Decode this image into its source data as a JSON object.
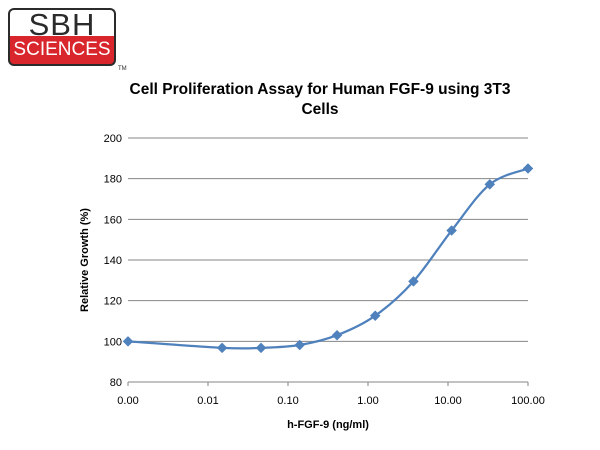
{
  "logo": {
    "top": "SBH",
    "bottom": "SCIENCES",
    "tm": "TM"
  },
  "chart_data": {
    "type": "line",
    "title": "Cell Proliferation Assay for Human FGF-9 using 3T3 Cells",
    "title_lines": [
      "Cell Proliferation Assay for Human FGF-9 using 3T3",
      "Cells"
    ],
    "xlabel": "h-FGF-9 (ng/ml)",
    "ylabel": "Relative Growth (%)",
    "x_scale": "log",
    "x_tick_labels": [
      "0.00",
      "0.01",
      "0.10",
      "1.00",
      "10.00",
      "100.00"
    ],
    "x_tick_values": [
      0.001,
      0.01,
      0.1,
      1,
      10,
      100
    ],
    "xlim": [
      0.001,
      100
    ],
    "ylim": [
      80,
      200
    ],
    "y_ticks": [
      80,
      100,
      120,
      140,
      160,
      180,
      200
    ],
    "grid": true,
    "legend": "none",
    "series": [
      {
        "color": "#4f81bd",
        "marker": "diamond",
        "x": [
          0.001,
          0.015,
          0.046,
          0.14,
          0.41,
          1.23,
          3.7,
          11.1,
          33.3,
          100
        ],
        "values": [
          100,
          96.8,
          96.8,
          98.2,
          103,
          112.6,
          129.5,
          154.5,
          177.2,
          185
        ]
      }
    ]
  }
}
